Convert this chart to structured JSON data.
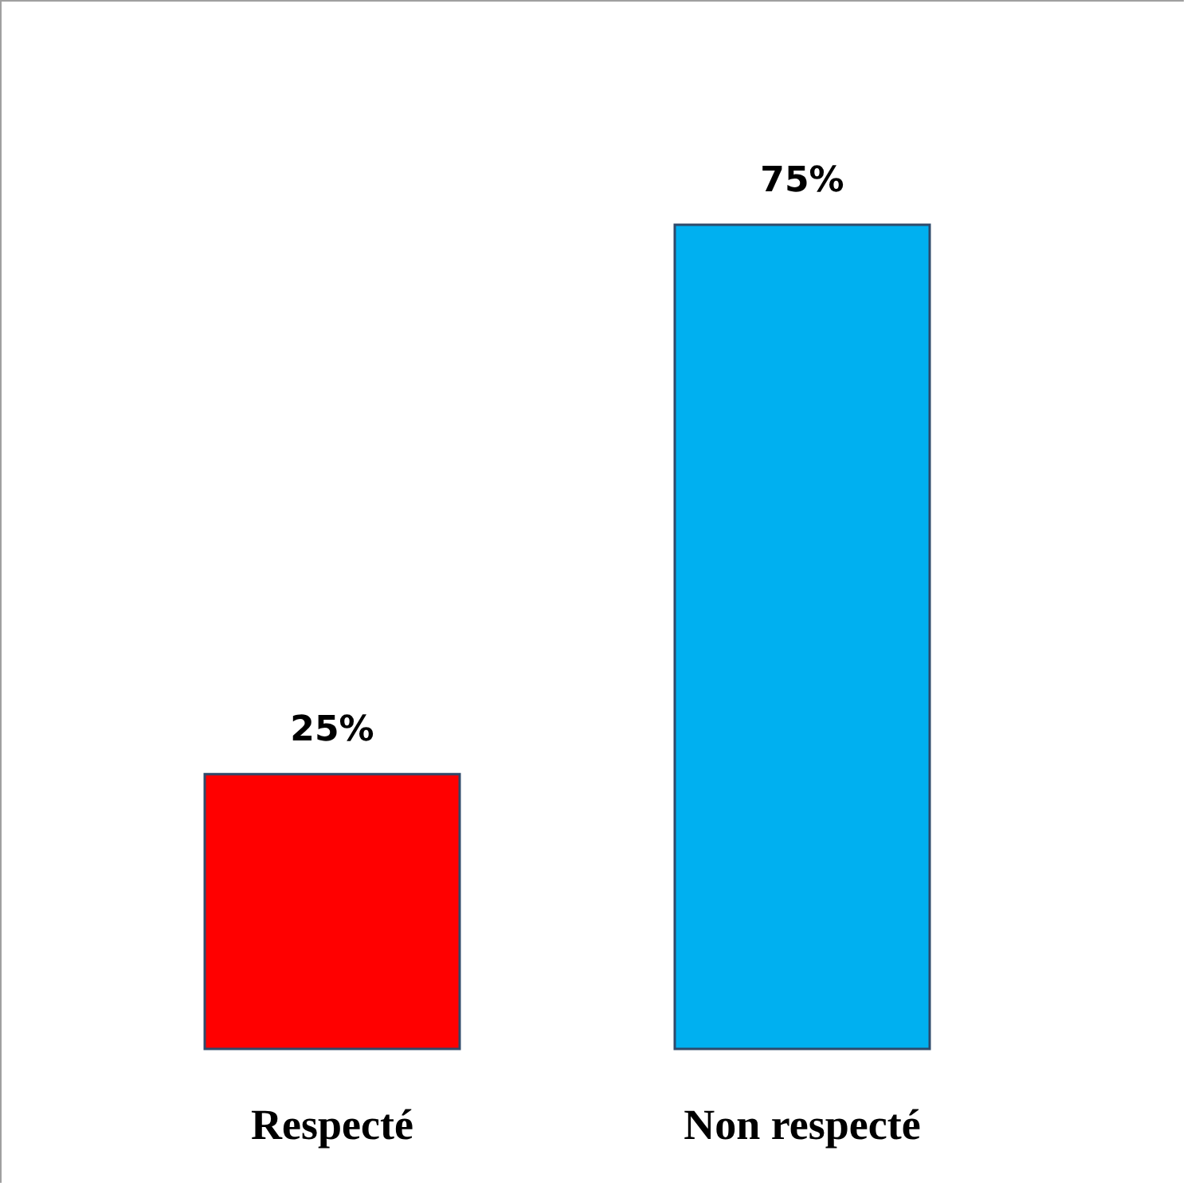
{
  "chart_data": {
    "type": "bar",
    "categories": [
      "Respecté",
      "Non respecté"
    ],
    "values": [
      25,
      75
    ],
    "colors": [
      "#ff0000",
      "#00b0f0"
    ],
    "value_labels": [
      "25%",
      "75%"
    ]
  }
}
